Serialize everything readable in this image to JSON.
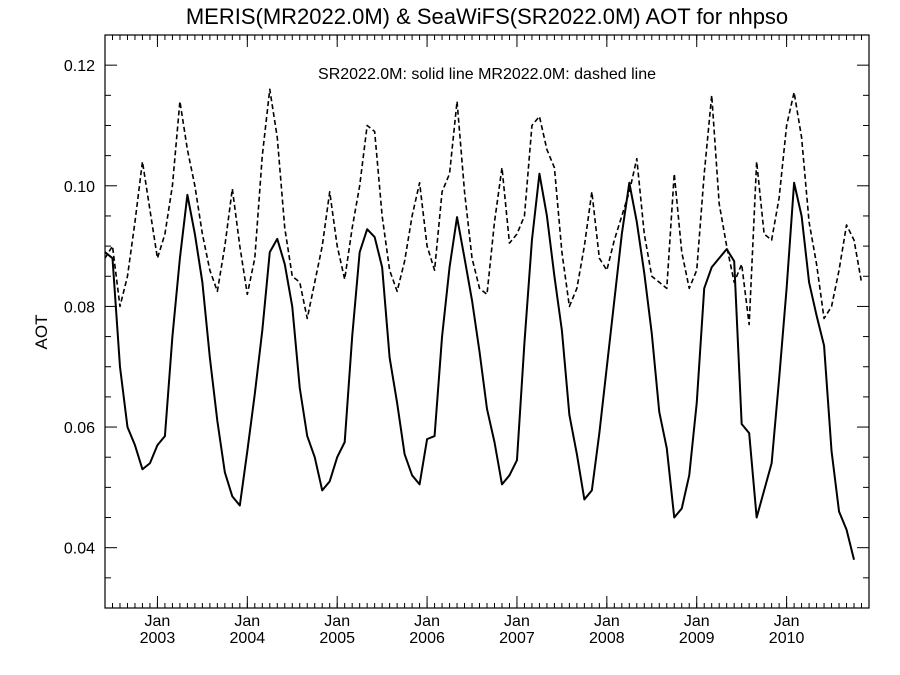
{
  "chart_data": {
    "type": "line",
    "title": "MERIS(MR2022.0M) & SeaWiFS(SR2022.0M)  AOT for nhpso",
    "xlabel": "",
    "ylabel": "AOT",
    "annotation": "SR2022.0M: solid line   MR2022.0M: dashed line",
    "xlim": [
      "2002-06",
      "2010-12"
    ],
    "ylim": [
      0.03,
      0.125
    ],
    "grid": false,
    "y_ticks": [
      "0.04",
      "0.06",
      "0.08",
      "0.10",
      "0.12"
    ],
    "x_ticks": [
      {
        "top": "Jan",
        "bottom": "2003",
        "date": "2003-01"
      },
      {
        "top": "Jan",
        "bottom": "2004",
        "date": "2004-01"
      },
      {
        "top": "Jan",
        "bottom": "2005",
        "date": "2005-01"
      },
      {
        "top": "Jan",
        "bottom": "2006",
        "date": "2006-01"
      },
      {
        "top": "Jan",
        "bottom": "2007",
        "date": "2007-01"
      },
      {
        "top": "Jan",
        "bottom": "2008",
        "date": "2008-01"
      },
      {
        "top": "Jan",
        "bottom": "2009",
        "date": "2009-01"
      },
      {
        "top": "Jan",
        "bottom": "2010",
        "date": "2010-01"
      }
    ],
    "x_start": "2002-06",
    "series": [
      {
        "name": "SR2022.0M",
        "style": "solid",
        "values": [
          0.089,
          0.088,
          0.07,
          0.06,
          0.057,
          0.053,
          0.054,
          0.057,
          0.0585,
          0.075,
          0.088,
          0.0985,
          0.092,
          0.084,
          0.0715,
          0.061,
          0.0525,
          0.0485,
          0.047,
          0.056,
          0.0655,
          0.076,
          0.089,
          0.0912,
          0.087,
          0.08,
          0.0665,
          0.0585,
          0.055,
          0.0495,
          0.051,
          0.055,
          0.0575,
          0.075,
          0.089,
          0.0928,
          0.0915,
          0.0865,
          0.0715,
          0.064,
          0.0555,
          0.052,
          0.0505,
          0.058,
          0.0585,
          0.075,
          0.0865,
          0.0948,
          0.088,
          0.081,
          0.0725,
          0.063,
          0.0575,
          0.0505,
          0.052,
          0.0545,
          0.074,
          0.091,
          0.102,
          0.095,
          0.085,
          0.076,
          0.062,
          0.0555,
          0.048,
          0.0495,
          0.059,
          0.07,
          0.081,
          0.092,
          0.1005,
          0.094,
          0.0855,
          0.0755,
          0.0625,
          0.0565,
          0.045,
          0.0465,
          0.052,
          0.064,
          0.083,
          0.0865,
          0.088,
          0.0895,
          0.0875,
          0.0605,
          0.059,
          0.045,
          0.0495,
          0.054,
          0.068,
          0.083,
          0.1005,
          0.095,
          0.084,
          0.0785,
          0.0735,
          0.056,
          0.046,
          0.043,
          0.038
        ]
      },
      {
        "name": "MR2022.0M",
        "style": "dashed",
        "values": [
          0.088,
          0.09,
          0.08,
          0.085,
          0.094,
          0.104,
          0.096,
          0.088,
          0.092,
          0.1,
          0.114,
          0.106,
          0.1,
          0.092,
          0.086,
          0.0825,
          0.09,
          0.0995,
          0.09,
          0.082,
          0.088,
          0.105,
          0.116,
          0.108,
          0.093,
          0.085,
          0.084,
          0.078,
          0.084,
          0.09,
          0.099,
          0.09,
          0.0845,
          0.093,
          0.1,
          0.11,
          0.109,
          0.095,
          0.086,
          0.0825,
          0.0875,
          0.095,
          0.1005,
          0.09,
          0.086,
          0.099,
          0.102,
          0.114,
          0.099,
          0.088,
          0.083,
          0.082,
          0.094,
          0.103,
          0.0905,
          0.092,
          0.095,
          0.11,
          0.1115,
          0.106,
          0.103,
          0.089,
          0.08,
          0.083,
          0.09,
          0.099,
          0.088,
          0.086,
          0.091,
          0.095,
          0.099,
          0.1045,
          0.092,
          0.085,
          0.084,
          0.083,
          0.102,
          0.089,
          0.083,
          0.086,
          0.102,
          0.115,
          0.097,
          0.09,
          0.084,
          0.087,
          0.077,
          0.104,
          0.092,
          0.091,
          0.098,
          0.11,
          0.1155,
          0.108,
          0.094,
          0.087,
          0.078,
          0.08,
          0.086,
          0.0935,
          0.091,
          0.084
        ]
      }
    ]
  }
}
